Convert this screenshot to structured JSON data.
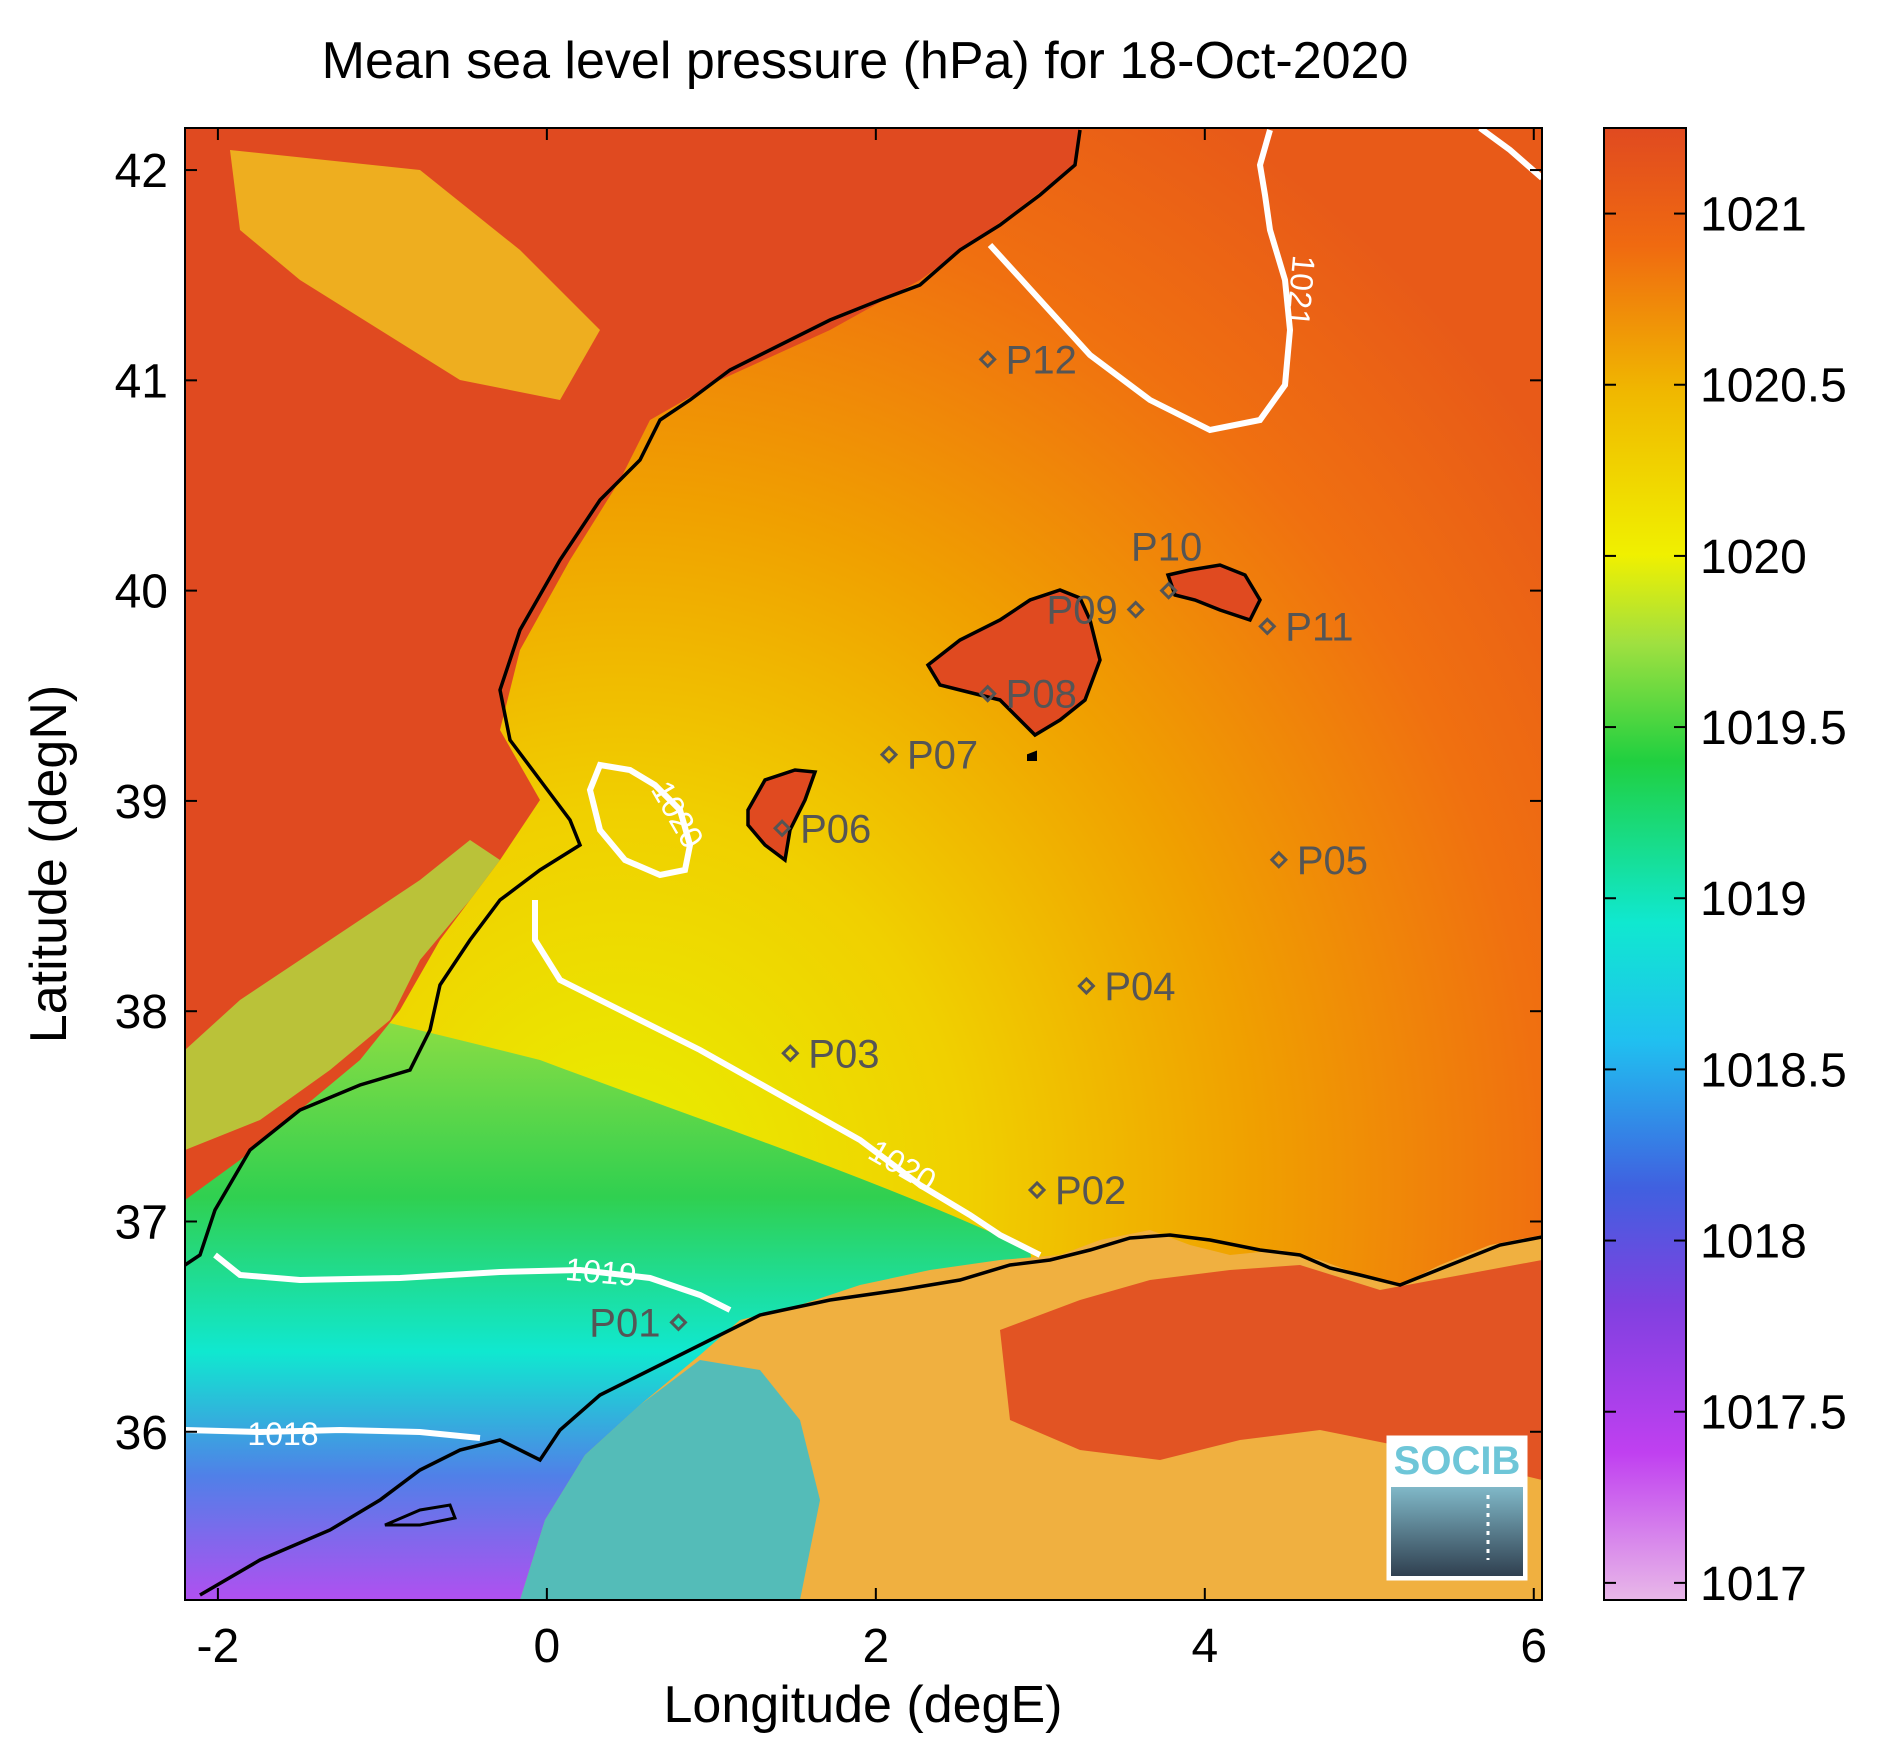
{
  "chart_data": {
    "type": "heatmap",
    "title": "Mean sea level pressure (hPa) for 18-Oct-2020",
    "xlabel": "Longitude (degE)",
    "ylabel": "Latitude (degN)",
    "xlim": [
      -2.2,
      6.05
    ],
    "ylim": [
      35.2,
      42.2
    ],
    "xticks": [
      -2,
      0,
      2,
      4,
      6
    ],
    "yticks": [
      36,
      37,
      38,
      39,
      40,
      41,
      42
    ],
    "colorbar": {
      "range": [
        1016.95,
        1021.25
      ],
      "ticks": [
        1017,
        1017.5,
        1018,
        1018.5,
        1019,
        1019.5,
        1020,
        1020.5,
        1021
      ],
      "tick_labels": [
        "1017",
        "1017.5",
        "1018",
        "1018.5",
        "1019",
        "1019.5",
        "1020",
        "1020.5",
        "1021"
      ],
      "colors": [
        "#e8b8e8",
        "#c040f0",
        "#8040e0",
        "#4060e0",
        "#20c0f0",
        "#10e8d0",
        "#20d040",
        "#a0e040",
        "#f0f000",
        "#f0b800",
        "#f06a10",
        "#e04a20"
      ]
    },
    "contour_levels": [
      {
        "value": 1018,
        "label": "1018"
      },
      {
        "value": 1019,
        "label": "1019"
      },
      {
        "value": 1020,
        "label": "1020"
      },
      {
        "value": 1021,
        "label": "1021"
      }
    ],
    "stations": [
      {
        "name": "P01",
        "lon": 0.8,
        "lat": 36.52
      },
      {
        "name": "P02",
        "lon": 2.98,
        "lat": 37.15
      },
      {
        "name": "P03",
        "lon": 1.48,
        "lat": 37.8
      },
      {
        "name": "P04",
        "lon": 3.28,
        "lat": 38.12
      },
      {
        "name": "P05",
        "lon": 4.45,
        "lat": 38.72
      },
      {
        "name": "P06",
        "lon": 1.43,
        "lat": 38.87
      },
      {
        "name": "P07",
        "lon": 2.08,
        "lat": 39.22
      },
      {
        "name": "P08",
        "lon": 2.68,
        "lat": 39.51
      },
      {
        "name": "P09",
        "lon": 3.58,
        "lat": 39.91
      },
      {
        "name": "P10",
        "lon": 3.78,
        "lat": 40.0
      },
      {
        "name": "P11",
        "lon": 4.38,
        "lat": 39.83
      },
      {
        "name": "P12",
        "lon": 2.68,
        "lat": 41.1
      }
    ]
  },
  "logo": {
    "text": "SOCIB"
  }
}
